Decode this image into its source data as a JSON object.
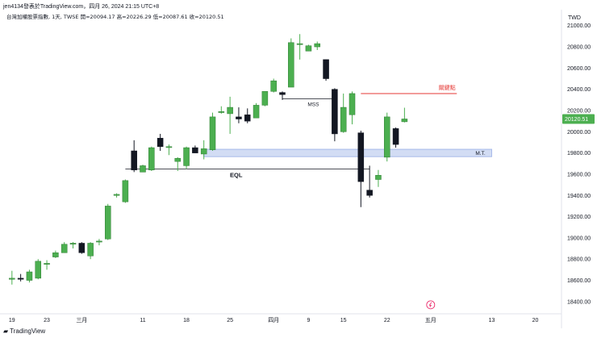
{
  "header": {
    "caption": "jen4134發表於TradingView.com，四月 26, 2024 21:15 UTC+8"
  },
  "footer": {
    "brand": "TradingView",
    "logo_icon": "tradingview-logo-icon"
  },
  "colors": {
    "up": "#4caf50",
    "down": "#131722",
    "zone": "#7e9ae0",
    "red_line": "#e53935",
    "axis_text": "#131722",
    "last_price_bg": "#4caf50"
  },
  "chart_data": {
    "type": "candlestick",
    "instrument_label": "台灣加權股票指數, 1天, TWSE",
    "ohlc_readout": {
      "open": "開=20094.17",
      "high": "高=20226.29",
      "low": "低=20087.61",
      "close": "收=20120.51"
    },
    "currency": "TWD",
    "last_price": "20120.51",
    "y_axis": {
      "ticks": [
        18400,
        18600,
        18800,
        19000,
        19200,
        19400,
        19600,
        19800,
        20000,
        20200,
        20400,
        20600,
        20800,
        21000
      ],
      "tick_labels": [
        "18400.00",
        "18600.00",
        "18800.00",
        "19000.00",
        "19200.00",
        "19400.00",
        "19600.00",
        "19800.00",
        "20000.00",
        "20200.00",
        "20400.00",
        "20600.00",
        "20800.00",
        "21000.00"
      ],
      "range": [
        18300,
        21150
      ]
    },
    "x_axis": {
      "labels": [
        {
          "text": "19",
          "index": 0
        },
        {
          "text": "23",
          "index": 4
        },
        {
          "text": "三月",
          "index": 8
        },
        {
          "text": "11",
          "index": 15
        },
        {
          "text": "18",
          "index": 20
        },
        {
          "text": "25",
          "index": 25
        },
        {
          "text": "四月",
          "index": 30
        },
        {
          "text": "9",
          "index": 34
        },
        {
          "text": "15",
          "index": 38
        },
        {
          "text": "22",
          "index": 43
        },
        {
          "text": "五月",
          "index": 48
        },
        {
          "text": "13",
          "index": 55
        },
        {
          "text": "20",
          "index": 60
        }
      ],
      "range": [
        -1,
        63
      ]
    },
    "candles": [
      {
        "o": 18610,
        "h": 18690,
        "l": 18560,
        "c": 18620
      },
      {
        "o": 18620,
        "h": 18660,
        "l": 18590,
        "c": 18610
      },
      {
        "o": 18600,
        "h": 18700,
        "l": 18580,
        "c": 18680
      },
      {
        "o": 18620,
        "h": 18800,
        "l": 18610,
        "c": 18780
      },
      {
        "o": 18760,
        "h": 18790,
        "l": 18700,
        "c": 18760
      },
      {
        "o": 18820,
        "h": 18880,
        "l": 18810,
        "c": 18860
      },
      {
        "o": 18860,
        "h": 18960,
        "l": 18860,
        "c": 18940
      },
      {
        "o": 18940,
        "h": 18960,
        "l": 18900,
        "c": 18950
      },
      {
        "o": 18950,
        "h": 18960,
        "l": 18850,
        "c": 18860
      },
      {
        "o": 18830,
        "h": 18960,
        "l": 18800,
        "c": 18950
      },
      {
        "o": 18970,
        "h": 18990,
        "l": 18930,
        "c": 18970
      },
      {
        "o": 18990,
        "h": 19320,
        "l": 18980,
        "c": 19300
      },
      {
        "o": 19400,
        "h": 19420,
        "l": 19380,
        "c": 19410
      },
      {
        "o": 19340,
        "h": 19550,
        "l": 19330,
        "c": 19540
      },
      {
        "o": 19820,
        "h": 19920,
        "l": 19620,
        "c": 19640
      },
      {
        "o": 19620,
        "h": 19690,
        "l": 19620,
        "c": 19680
      },
      {
        "o": 19640,
        "h": 19860,
        "l": 19630,
        "c": 19850
      },
      {
        "o": 19940,
        "h": 19980,
        "l": 19820,
        "c": 19860
      },
      {
        "o": 19860,
        "h": 19880,
        "l": 19780,
        "c": 19860
      },
      {
        "o": 19720,
        "h": 19760,
        "l": 19630,
        "c": 19750
      },
      {
        "o": 19680,
        "h": 19860,
        "l": 19650,
        "c": 19850
      },
      {
        "o": 19850,
        "h": 19870,
        "l": 19800,
        "c": 19800
      },
      {
        "o": 19790,
        "h": 19920,
        "l": 19740,
        "c": 19840
      },
      {
        "o": 19830,
        "h": 20180,
        "l": 19820,
        "c": 20140
      },
      {
        "o": 20190,
        "h": 20240,
        "l": 20170,
        "c": 20190
      },
      {
        "o": 20170,
        "h": 20330,
        "l": 19980,
        "c": 20230
      },
      {
        "o": 20140,
        "h": 20230,
        "l": 20080,
        "c": 20120
      },
      {
        "o": 20160,
        "h": 20220,
        "l": 20080,
        "c": 20100
      },
      {
        "o": 20130,
        "h": 20270,
        "l": 20130,
        "c": 20250
      },
      {
        "o": 20250,
        "h": 20380,
        "l": 20240,
        "c": 20380
      },
      {
        "o": 20380,
        "h": 20500,
        "l": 20370,
        "c": 20480
      },
      {
        "o": 20370,
        "h": 20380,
        "l": 20300,
        "c": 20350
      },
      {
        "o": 20420,
        "h": 20880,
        "l": 20420,
        "c": 20840
      },
      {
        "o": 20830,
        "h": 20920,
        "l": 20680,
        "c": 20830
      },
      {
        "o": 20760,
        "h": 20820,
        "l": 20760,
        "c": 20810
      },
      {
        "o": 20800,
        "h": 20850,
        "l": 20770,
        "c": 20830
      },
      {
        "o": 20680,
        "h": 20680,
        "l": 20480,
        "c": 20500
      },
      {
        "o": 20400,
        "h": 20410,
        "l": 19910,
        "c": 19980
      },
      {
        "o": 20000,
        "h": 20360,
        "l": 19990,
        "c": 20230
      },
      {
        "o": 20160,
        "h": 20380,
        "l": 20070,
        "c": 20360
      },
      {
        "o": 19990,
        "h": 20010,
        "l": 19290,
        "c": 19530
      },
      {
        "o": 19450,
        "h": 19680,
        "l": 19380,
        "c": 19400
      },
      {
        "o": 19550,
        "h": 19640,
        "l": 19480,
        "c": 19590
      },
      {
        "o": 19760,
        "h": 20180,
        "l": 19720,
        "c": 20140
      },
      {
        "o": 20030,
        "h": 20040,
        "l": 19850,
        "c": 19880
      },
      {
        "o": 20094.17,
        "h": 20226.29,
        "l": 20087.61,
        "c": 20120.51
      }
    ],
    "candle_x_index": [
      0,
      1,
      2,
      3,
      4,
      5,
      6,
      7,
      8,
      9,
      10,
      11,
      12,
      13,
      14,
      15,
      16,
      17,
      18,
      19,
      20,
      21,
      22,
      23,
      24,
      25,
      26,
      27,
      28,
      29,
      30,
      31,
      32,
      33,
      34,
      35,
      36,
      37,
      38,
      39,
      40,
      41,
      42,
      43,
      44,
      45
    ],
    "annotations": {
      "zone": {
        "label": "M.T.",
        "y_top": 19835,
        "y_bottom": 19765,
        "x_start": 22,
        "x_end": 55
      },
      "eql": {
        "label": "EQL",
        "y": 19650,
        "x_start": 13,
        "x_end": 41
      },
      "mss": {
        "label": "MSS",
        "y": 20310,
        "x_start": 31,
        "x_end": 37
      },
      "key_level": {
        "label": "關鍵點",
        "y": 20360,
        "x_start": 40,
        "x_end": 51
      },
      "eql_tick": {
        "x": 14
      },
      "lightning_icon": {
        "name": "lightning-icon",
        "x": 48,
        "y": 18400
      }
    }
  }
}
